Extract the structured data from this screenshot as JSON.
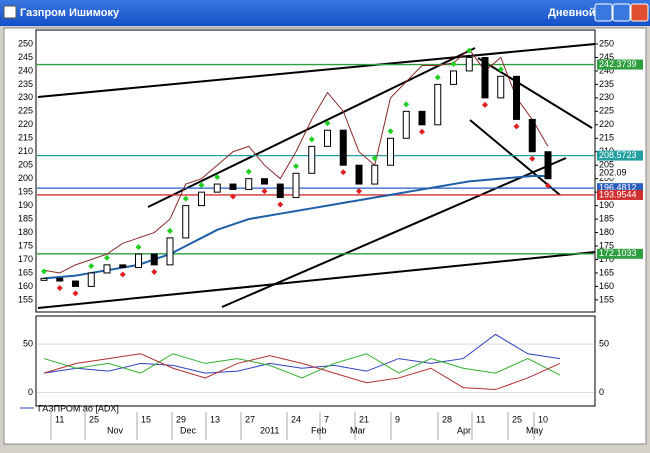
{
  "window": {
    "title": "Газпром Ишимоку",
    "timeframe": "Дневной"
  },
  "chart_data": {
    "type": "candlestick",
    "closes": [
      163,
      162,
      160,
      165,
      168,
      167,
      172,
      168,
      178,
      190,
      195,
      198,
      196,
      200,
      198,
      193,
      202,
      212,
      218,
      205,
      198,
      205,
      215,
      225,
      220,
      235,
      240,
      245,
      230,
      238,
      222,
      210,
      200
    ],
    "lines": [
      {
        "color": "#1f5fa8",
        "values": [
          163,
          163.5,
          164,
          165,
          166,
          167,
          168,
          170,
          172,
          175,
          178,
          181,
          183,
          185,
          186,
          187,
          188,
          189,
          190,
          191,
          192,
          193,
          194,
          195,
          196,
          197,
          198,
          199,
          199.5,
          200,
          200.5,
          201,
          201
        ]
      },
      {
        "color": "#8b2b2b",
        "values": [
          166,
          165,
          168,
          170,
          172,
          176,
          178,
          180,
          185,
          198,
          200,
          205,
          210,
          212,
          205,
          200,
          210,
          222,
          232,
          225,
          210,
          205,
          230,
          236,
          242,
          242,
          243,
          248,
          240,
          245,
          230,
          222,
          212
        ]
      }
    ],
    "ylim": [
      150.5,
      255.2
    ],
    "yticks": [
      155,
      160,
      165,
      170,
      175,
      180,
      185,
      190,
      195,
      200,
      205,
      210,
      215,
      220,
      225,
      230,
      235,
      240,
      245,
      250
    ],
    "levels": [
      242.3739,
      208.5723,
      202.09,
      196.4812,
      193.9544,
      172.1033
    ],
    "level_colors": [
      "#2e9e3e",
      "#22a0a0",
      "#ffffff",
      "#2a5fc0",
      "#d03030",
      "#2e9e3e"
    ],
    "x_day_labels": [
      "11",
      "25",
      "15",
      "29",
      "13",
      "27",
      "24",
      "7",
      "21",
      "9",
      "28",
      "11",
      "25",
      "10"
    ],
    "x_month_labels": [
      "Nov",
      "Dec",
      "2011",
      "Feb",
      "Mar",
      "Apr",
      "May"
    ]
  },
  "indicator": {
    "type": "line",
    "legend": "ГАЗПРОМ ао [ADX]",
    "ylim": [
      -14,
      79
    ],
    "yticks": [
      0,
      50
    ],
    "series": [
      {
        "color": "#3040c0",
        "values": [
          20,
          25,
          22,
          30,
          28,
          20,
          22,
          30,
          25,
          28,
          22,
          35,
          30,
          35,
          60,
          40,
          35
        ]
      },
      {
        "color": "#30b030",
        "values": [
          35,
          25,
          30,
          20,
          40,
          30,
          35,
          28,
          15,
          30,
          40,
          20,
          35,
          25,
          20,
          35,
          18
        ]
      },
      {
        "color": "#b03030",
        "values": [
          20,
          30,
          35,
          40,
          25,
          15,
          30,
          38,
          30,
          20,
          10,
          15,
          25,
          5,
          3,
          15,
          30
        ]
      }
    ]
  }
}
